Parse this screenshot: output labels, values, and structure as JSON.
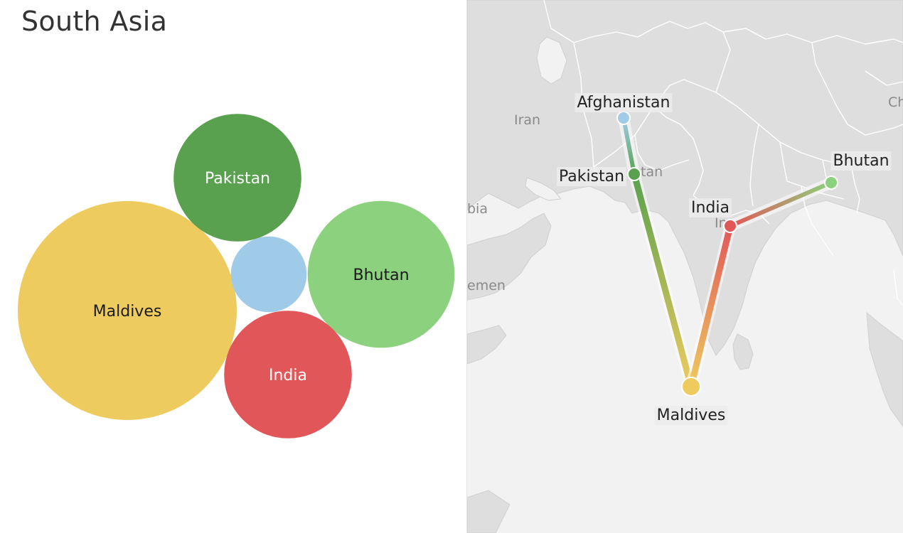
{
  "title": "South Asia",
  "chart_data": [
    {
      "type": "bubble",
      "title": "South Asia",
      "series": [
        {
          "name": "Maldives",
          "value": 100,
          "color": "#eecb5f",
          "label_color": "#1a1a1a",
          "show_label": true
        },
        {
          "name": "Bhutan",
          "value": 45,
          "color": "#8cd17d",
          "label_color": "#1a1a1a",
          "show_label": true
        },
        {
          "name": "India",
          "value": 34,
          "color": "#e15759",
          "label_color": "#ffffff",
          "show_label": true
        },
        {
          "name": "Pakistan",
          "value": 34,
          "color": "#59a14f",
          "label_color": "#ffffff",
          "show_label": true
        },
        {
          "name": "Afghanistan",
          "value": 12,
          "color": "#a0cbe8",
          "label_color": "#1a1a1a",
          "show_label": false
        }
      ]
    },
    {
      "type": "map",
      "path": [
        "Afghanistan",
        "Pakistan",
        "Maldives",
        "India",
        "Bhutan"
      ],
      "points": [
        {
          "name": "Afghanistan",
          "color": "#a0cbe8"
        },
        {
          "name": "Pakistan",
          "color": "#59a14f"
        },
        {
          "name": "Maldives",
          "color": "#eecb5f"
        },
        {
          "name": "India",
          "color": "#e15759"
        },
        {
          "name": "Bhutan",
          "color": "#8cd17d"
        }
      ],
      "background_labels": [
        "Iran",
        "Ch",
        "bia",
        "emen",
        "tan",
        "In"
      ]
    }
  ]
}
